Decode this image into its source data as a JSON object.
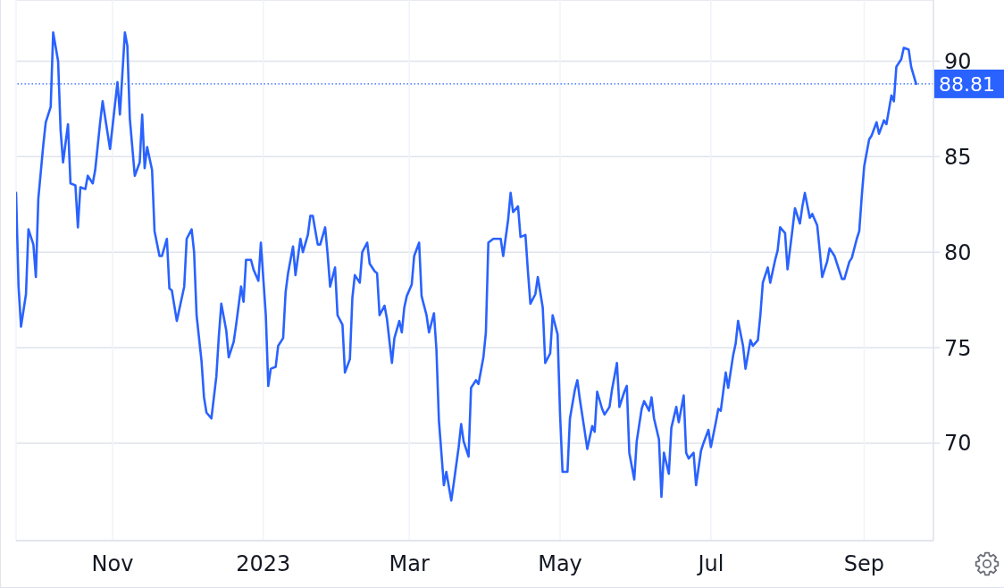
{
  "chart_data": {
    "type": "line",
    "color": "#2962ff",
    "marker": "none",
    "grid": true,
    "xlim": [
      "2022-09-23",
      "2023-09-29"
    ],
    "xticks": [
      {
        "value": "2022-11-01",
        "label": "Nov"
      },
      {
        "value": "2023-01-01",
        "label": "2023"
      },
      {
        "value": "2023-03-01",
        "label": "Mar"
      },
      {
        "value": "2023-05-01",
        "label": "May"
      },
      {
        "value": "2023-07-01",
        "label": "Jul"
      },
      {
        "value": "2023-09-01",
        "label": "Sep"
      }
    ],
    "ylim": [
      64.9,
      93.2
    ],
    "yticks": [
      70,
      75,
      80,
      85,
      90
    ],
    "ref_lines": [
      {
        "axis": "y",
        "value": 88.81,
        "label": "88.81",
        "color": "#2962ff",
        "line_style": "dotted"
      }
    ],
    "x": [
      "2022-09-23",
      "2022-09-24",
      "2022-09-25",
      "2022-09-27",
      "2022-09-28",
      "2022-09-30",
      "2022-10-01",
      "2022-10-02",
      "2022-10-04",
      "2022-10-05",
      "2022-10-07",
      "2022-10-08",
      "2022-10-10",
      "2022-10-11",
      "2022-10-12",
      "2022-10-14",
      "2022-10-15",
      "2022-10-17",
      "2022-10-18",
      "2022-10-19",
      "2022-10-21",
      "2022-10-22",
      "2022-10-24",
      "2022-10-25",
      "2022-10-27",
      "2022-10-28",
      "2022-10-31",
      "2022-11-03",
      "2022-11-04",
      "2022-11-06",
      "2022-11-07",
      "2022-11-08",
      "2022-11-10",
      "2022-11-12",
      "2022-11-13",
      "2022-11-14",
      "2022-11-15",
      "2022-11-17",
      "2022-11-18",
      "2022-11-20",
      "2022-11-21",
      "2022-11-23",
      "2022-11-24",
      "2022-11-25",
      "2022-11-27",
      "2022-11-30",
      "2022-12-01",
      "2022-12-03",
      "2022-12-04",
      "2022-12-05",
      "2022-12-07",
      "2022-12-08",
      "2022-12-09",
      "2022-12-11",
      "2022-12-13",
      "2022-12-14",
      "2022-12-15",
      "2022-12-17",
      "2022-12-18",
      "2022-12-20",
      "2022-12-21",
      "2022-12-23",
      "2022-12-24",
      "2022-12-25",
      "2022-12-27",
      "2022-12-28",
      "2022-12-30",
      "2022-12-31",
      "2023-01-02",
      "2023-01-03",
      "2023-01-04",
      "2023-01-06",
      "2023-01-07",
      "2023-01-09",
      "2023-01-10",
      "2023-01-11",
      "2023-01-13",
      "2023-01-14",
      "2023-01-16",
      "2023-01-17",
      "2023-01-19",
      "2023-01-20",
      "2023-01-21",
      "2023-01-23",
      "2023-01-24",
      "2023-01-26",
      "2023-01-27",
      "2023-01-28",
      "2023-01-30",
      "2023-01-31",
      "2023-02-02",
      "2023-02-03",
      "2023-02-05",
      "2023-02-06",
      "2023-02-07",
      "2023-02-09",
      "2023-02-10",
      "2023-02-12",
      "2023-02-13",
      "2023-02-15",
      "2023-02-16",
      "2023-02-17",
      "2023-02-19",
      "2023-02-20",
      "2023-02-22",
      "2023-02-23",
      "2023-02-25",
      "2023-02-26",
      "2023-02-27",
      "2023-02-28",
      "2023-03-02",
      "2023-03-03",
      "2023-03-05",
      "2023-03-06",
      "2023-03-08",
      "2023-03-09",
      "2023-03-11",
      "2023-03-12",
      "2023-03-13",
      "2023-03-15",
      "2023-03-16",
      "2023-03-18",
      "2023-03-19",
      "2023-03-21",
      "2023-03-22",
      "2023-03-23",
      "2023-03-25",
      "2023-03-26",
      "2023-03-28",
      "2023-03-29",
      "2023-03-31",
      "2023-04-01",
      "2023-04-02",
      "2023-04-04",
      "2023-04-05",
      "2023-04-07",
      "2023-04-08",
      "2023-04-10",
      "2023-04-11",
      "2023-04-12",
      "2023-04-14",
      "2023-04-15",
      "2023-04-17",
      "2023-04-18",
      "2023-04-19",
      "2023-04-21",
      "2023-04-22",
      "2023-04-24",
      "2023-04-25",
      "2023-04-27",
      "2023-04-28",
      "2023-04-30",
      "2023-05-01",
      "2023-05-02",
      "2023-05-04",
      "2023-05-05",
      "2023-05-07",
      "2023-05-08",
      "2023-05-09",
      "2023-05-11",
      "2023-05-12",
      "2023-05-14",
      "2023-05-15",
      "2023-05-16",
      "2023-05-18",
      "2023-05-19",
      "2023-05-21",
      "2023-05-22",
      "2023-05-24",
      "2023-05-25",
      "2023-05-27",
      "2023-05-28",
      "2023-05-29",
      "2023-05-31",
      "2023-06-01",
      "2023-06-03",
      "2023-06-04",
      "2023-06-06",
      "2023-06-07",
      "2023-06-08",
      "2023-06-10",
      "2023-06-11",
      "2023-06-12",
      "2023-06-14",
      "2023-06-15",
      "2023-06-17",
      "2023-06-18",
      "2023-06-20",
      "2023-06-21",
      "2023-06-22",
      "2023-06-24",
      "2023-06-25",
      "2023-06-27",
      "2023-06-28",
      "2023-06-30",
      "2023-07-01",
      "2023-07-03",
      "2023-07-04",
      "2023-07-05",
      "2023-07-07",
      "2023-07-08",
      "2023-07-10",
      "2023-07-11",
      "2023-07-12",
      "2023-07-14",
      "2023-07-15",
      "2023-07-17",
      "2023-07-18",
      "2023-07-20",
      "2023-07-21",
      "2023-07-22",
      "2023-07-24",
      "2023-07-25",
      "2023-07-27",
      "2023-07-28",
      "2023-07-29",
      "2023-07-31",
      "2023-08-01",
      "2023-08-03",
      "2023-08-04",
      "2023-08-06",
      "2023-08-07",
      "2023-08-08",
      "2023-08-10",
      "2023-08-11",
      "2023-08-13",
      "2023-08-14",
      "2023-08-15",
      "2023-08-17",
      "2023-08-18",
      "2023-08-20",
      "2023-08-21",
      "2023-08-23",
      "2023-08-24",
      "2023-08-26",
      "2023-08-27",
      "2023-08-29",
      "2023-08-30",
      "2023-08-31",
      "2023-09-01",
      "2023-09-03",
      "2023-09-04",
      "2023-09-06",
      "2023-09-07",
      "2023-09-09",
      "2023-09-10",
      "2023-09-12",
      "2023-09-13",
      "2023-09-14",
      "2023-09-16",
      "2023-09-17",
      "2023-09-19",
      "2023-09-20",
      "2023-09-22"
    ],
    "values": [
      83.1,
      78.2,
      76.1,
      77.8,
      81.2,
      80.4,
      78.7,
      82.8,
      85.6,
      86.8,
      87.6,
      91.5,
      90.0,
      86.4,
      84.7,
      86.7,
      83.6,
      83.5,
      81.3,
      83.4,
      83.3,
      84.0,
      83.6,
      84.3,
      86.8,
      87.9,
      85.4,
      88.9,
      87.2,
      91.5,
      90.8,
      87.0,
      84.0,
      84.7,
      87.2,
      84.4,
      85.5,
      84.3,
      81.1,
      79.8,
      79.8,
      80.7,
      78.1,
      78.0,
      76.4,
      78.2,
      80.7,
      81.2,
      80.0,
      76.7,
      74.3,
      72.4,
      71.6,
      71.3,
      73.5,
      75.6,
      77.3,
      75.9,
      74.5,
      75.3,
      76.2,
      78.2,
      77.4,
      79.6,
      79.6,
      79.1,
      78.5,
      80.5,
      76.7,
      73.0,
      73.9,
      74.0,
      75.1,
      75.5,
      77.9,
      78.9,
      80.3,
      78.8,
      80.7,
      80.0,
      80.9,
      81.9,
      81.9,
      80.4,
      80.4,
      81.3,
      79.9,
      78.2,
      79.2,
      76.7,
      76.2,
      73.7,
      74.4,
      77.6,
      78.8,
      78.4,
      80.0,
      80.5,
      79.4,
      79.0,
      78.9,
      76.7,
      77.2,
      76.5,
      74.2,
      75.5,
      76.4,
      75.8,
      77.1,
      77.7,
      78.3,
      79.8,
      80.5,
      77.7,
      76.7,
      75.8,
      76.8,
      74.9,
      71.2,
      67.8,
      68.5,
      67.0,
      67.9,
      69.8,
      71.0,
      70.1,
      69.3,
      72.9,
      73.3,
      73.1,
      74.5,
      75.8,
      80.5,
      80.7,
      80.7,
      80.7,
      79.8,
      81.7,
      83.1,
      82.1,
      82.4,
      80.8,
      80.9,
      79.0,
      77.3,
      77.8,
      78.7,
      77.1,
      74.2,
      74.7,
      76.7,
      75.7,
      71.5,
      68.5,
      68.5,
      71.3,
      72.8,
      73.3,
      72.3,
      70.6,
      69.7,
      70.9,
      70.6,
      72.7,
      71.8,
      71.5,
      71.9,
      72.8,
      74.2,
      71.9,
      72.7,
      73.0,
      69.5,
      68.1,
      70.1,
      71.8,
      72.2,
      71.7,
      72.4,
      71.3,
      70.2,
      67.2,
      69.5,
      68.4,
      70.8,
      71.9,
      71.1,
      72.5,
      69.5,
      69.2,
      69.5,
      67.8,
      69.6,
      70.0,
      70.7,
      69.8,
      71.1,
      71.8,
      71.7,
      73.7,
      72.9,
      74.6,
      75.2,
      76.4,
      75.1,
      73.9,
      75.4,
      75.1,
      75.4,
      76.7,
      78.4,
      79.2,
      78.4,
      79.6,
      80.1,
      81.3,
      81.0,
      79.1,
      81.2,
      82.3,
      81.5,
      82.4,
      83.1,
      81.8,
      82.0,
      81.4,
      80.1,
      78.7,
      79.5,
      80.2,
      79.8,
      79.4,
      78.6,
      78.6,
      79.5,
      79.7,
      80.7,
      81.1,
      82.9,
      84.5,
      85.9,
      86.1,
      86.8,
      86.2,
      86.9,
      86.7,
      88.2,
      87.9,
      89.7,
      90.1,
      90.7,
      90.6,
      89.7,
      88.81
    ]
  }
}
